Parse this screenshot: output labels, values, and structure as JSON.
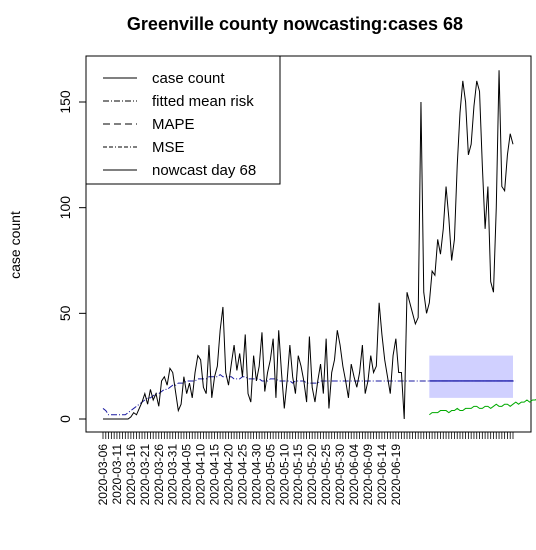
{
  "chart_data": {
    "type": "line",
    "title": "Greenville county nowcasting:cases 68",
    "ylabel": "case count",
    "xlabel": "",
    "ylim": [
      -5,
      168
    ],
    "yticks": [
      0,
      50,
      100,
      150
    ],
    "start_date": "2020-03-06",
    "x_tick_labels": [
      "2020-03-06",
      "2020-03-11",
      "2020-03-16",
      "2020-03-21",
      "2020-03-26",
      "2020-03-31",
      "2020-04-05",
      "2020-04-10",
      "2020-04-15",
      "2020-04-20",
      "2020-04-25",
      "2020-04-30",
      "2020-05-05",
      "2020-05-10",
      "2020-05-15",
      "2020-05-20",
      "2020-05-25",
      "2020-05-30",
      "2020-06-04",
      "2020-06-09",
      "2020-06-14",
      "2020-06-19"
    ],
    "legend": {
      "position": "top-left",
      "entries": [
        {
          "label": "case count",
          "dash": "solid"
        },
        {
          "label": "fitted mean risk",
          "dash": "dotdash"
        },
        {
          "label": "MAPE",
          "dash": "dashed"
        },
        {
          "label": "MSE",
          "dash": "longdash"
        },
        {
          "label": "nowcast day 68",
          "dash": "solid"
        }
      ]
    },
    "series": [
      {
        "name": "case count",
        "color": "#000000",
        "values": [
          0,
          0,
          0,
          0,
          0,
          0,
          0,
          0,
          0,
          0,
          1,
          3,
          2,
          5,
          8,
          12,
          7,
          14,
          9,
          12,
          6,
          18,
          20,
          16,
          24,
          22,
          13,
          4,
          7,
          20,
          12,
          17,
          10,
          22,
          30,
          28,
          15,
          12,
          35,
          10,
          20,
          25,
          42,
          53,
          22,
          16,
          26,
          35,
          23,
          31,
          20,
          40,
          12,
          8,
          30,
          18,
          25,
          41,
          13,
          22,
          28,
          38,
          10,
          42,
          22,
          5,
          18,
          35,
          20,
          12,
          30,
          25,
          18,
          8,
          39,
          15,
          8,
          18,
          26,
          12,
          38,
          5,
          22,
          28,
          42,
          35,
          25,
          18,
          10,
          26,
          20,
          15,
          22,
          35,
          12,
          18,
          30,
          22,
          25,
          55,
          40,
          28,
          20,
          12,
          30,
          38,
          22,
          22,
          0,
          60,
          55,
          50,
          45,
          48,
          150,
          60,
          50,
          55,
          70,
          68,
          85,
          78,
          90,
          110,
          95,
          75,
          85,
          120,
          145,
          160,
          150,
          125,
          130,
          148,
          160,
          155,
          120,
          90,
          110,
          65,
          60,
          100,
          165,
          110,
          108,
          125,
          135,
          130
        ]
      },
      {
        "name": "fitted mean risk",
        "color": "#1a1aa0",
        "values": [
          5,
          4,
          2,
          2,
          2,
          2,
          2,
          2,
          2,
          3,
          4,
          5,
          6,
          7,
          8,
          9,
          10,
          10,
          11,
          12,
          12,
          13,
          14,
          14,
          15,
          16,
          16,
          17,
          17,
          17,
          18,
          18,
          18,
          18,
          19,
          19,
          19,
          19,
          20,
          20,
          20,
          20,
          21,
          20,
          20,
          20,
          20,
          19,
          19,
          19,
          20,
          20,
          19,
          19,
          19,
          19,
          19,
          18,
          18,
          18,
          19,
          19,
          19,
          18,
          18,
          18,
          18,
          18,
          17,
          18,
          18,
          18,
          18,
          17,
          17,
          17,
          17,
          17,
          18,
          18,
          18,
          18,
          18,
          18,
          18,
          18,
          18,
          18,
          18,
          18,
          18,
          18,
          18,
          18,
          18,
          18,
          18,
          18,
          18,
          18,
          18,
          18,
          18,
          18,
          18,
          18,
          18,
          18,
          18,
          18,
          18,
          18,
          18,
          18,
          18,
          18,
          18,
          18,
          18,
          18,
          18,
          18,
          18,
          18,
          18,
          18,
          18,
          18,
          18,
          18,
          18,
          18,
          18,
          18,
          18,
          18,
          18,
          18,
          18,
          18,
          18,
          18,
          18,
          18,
          18,
          18,
          18,
          18,
          18
        ]
      },
      {
        "name": "nowcast day 68",
        "color": "#00aa00",
        "start_index": 117,
        "values": [
          2,
          3,
          3,
          3,
          4,
          4,
          4,
          3,
          4,
          4,
          5,
          4,
          4,
          5,
          5,
          5,
          6,
          6,
          5,
          5,
          6,
          6,
          5,
          6,
          7,
          6,
          6,
          7,
          7,
          6,
          7,
          8,
          7,
          8,
          8,
          9,
          8,
          9,
          9,
          10,
          9,
          10,
          10,
          11,
          11,
          12,
          11,
          12,
          13,
          12,
          14,
          14,
          15,
          14,
          16,
          15,
          15,
          16,
          17,
          16,
          17,
          18,
          18,
          19,
          20,
          19,
          21,
          20,
          22,
          21,
          14
        ]
      }
    ],
    "band": {
      "name": "MAPE / MSE range",
      "color": "#c8c8ff",
      "start_index": 117,
      "lower": 10,
      "upper": 30
    },
    "nowcast_mean_line": {
      "color": "#2020b0",
      "start_index": 117,
      "value": 18
    }
  }
}
